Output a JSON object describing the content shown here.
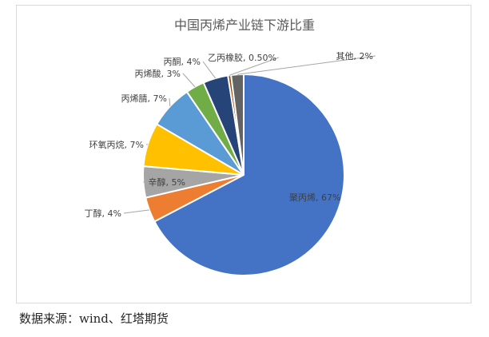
{
  "chart_data": {
    "type": "pie",
    "title": "中国丙烯产业链下游比重",
    "slices": [
      {
        "label": "聚丙烯",
        "value": 67,
        "display": "聚丙烯, 67%",
        "color": "#4472c4"
      },
      {
        "label": "丁醇",
        "value": 4,
        "display": "丁醇, 4%",
        "color": "#ed7d31"
      },
      {
        "label": "辛醇",
        "value": 5,
        "display": "辛醇, 5%",
        "color": "#a5a5a5"
      },
      {
        "label": "环氧丙烷",
        "value": 7,
        "display": "环氧丙烷, 7%",
        "color": "#ffc000"
      },
      {
        "label": "丙烯腈",
        "value": 7,
        "display": "丙烯腈, 7%",
        "color": "#5b9bd5"
      },
      {
        "label": "丙烯酸",
        "value": 3,
        "display": "丙烯酸, 3%",
        "color": "#70ad47"
      },
      {
        "label": "丙酮",
        "value": 4,
        "display": "丙酮, 4%",
        "color": "#264478"
      },
      {
        "label": "乙丙橡胶",
        "value": 0.5,
        "display": "乙丙橡胶, 0.50%",
        "color": "#9e480e"
      },
      {
        "label": "其他",
        "value": 2,
        "display": "其他, 2%",
        "color": "#636363"
      }
    ]
  },
  "source_note": "数据来源：wind、红塔期货"
}
